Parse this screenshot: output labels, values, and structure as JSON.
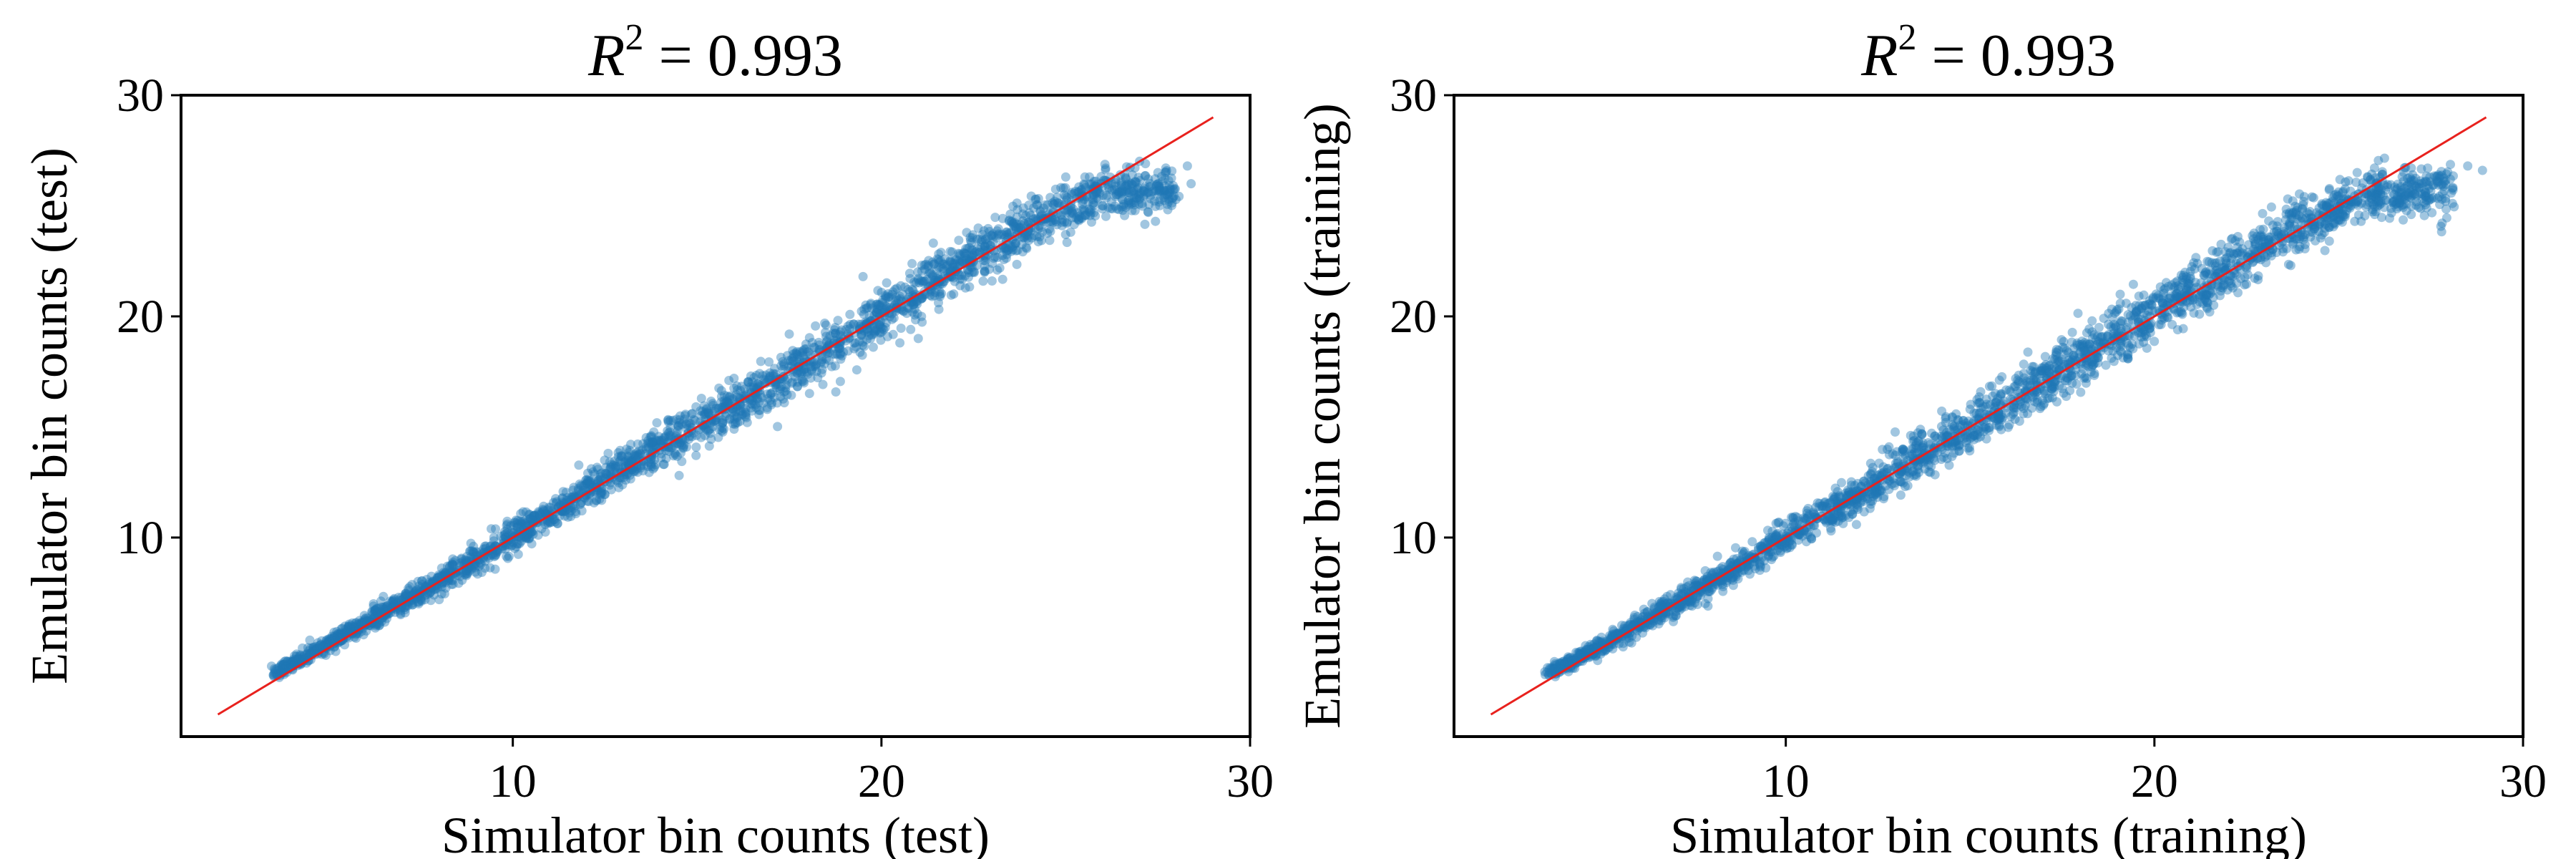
{
  "chart_data": [
    {
      "type": "scatter",
      "title_var": "R",
      "title_exp": "2",
      "title_eq": " = 0.993",
      "xlabel": "Simulator bin counts (test)",
      "ylabel": "Emulator bin counts (test)",
      "xlim": [
        1,
        30
      ],
      "ylim": [
        1,
        30
      ],
      "xticks": [
        10,
        20,
        30
      ],
      "yticks": [
        10,
        20,
        30
      ],
      "grid": false,
      "point_color": "#1f77b4",
      "line_color": "#e8211d",
      "reference_line": {
        "from": [
          2,
          2
        ],
        "to": [
          29,
          29
        ]
      },
      "series": [
        {
          "spine": [
            [
              3.6,
              3.9
            ],
            [
              5,
              5.2
            ],
            [
              8,
              8
            ],
            [
              10,
              10
            ],
            [
              12,
              12.1
            ],
            [
              14,
              14.2
            ],
            [
              16,
              15.9
            ],
            [
              18,
              17.9
            ],
            [
              20,
              20.1
            ],
            [
              22,
              22.2
            ],
            [
              24,
              24.1
            ],
            [
              26,
              25.6
            ],
            [
              28,
              25.7
            ]
          ],
          "spread": 0.55,
          "outliers": [
            [
              27.5,
              26.5
            ],
            [
              28.3,
              26.8
            ],
            [
              28.4,
              26
            ],
            [
              27.8,
              25.2
            ],
            [
              21,
              19
            ],
            [
              23,
              21.6
            ],
            [
              16,
              17.2
            ],
            [
              17.5,
              19.2
            ],
            [
              25,
              26.3
            ],
            [
              19.5,
              21.8
            ],
            [
              20.5,
              18.8
            ],
            [
              26.6,
              26.4
            ]
          ]
        }
      ]
    },
    {
      "type": "scatter",
      "title_var": "R",
      "title_exp": "2",
      "title_eq": " = 0.993",
      "xlabel": "Simulator bin counts (training)",
      "ylabel": "Emulator bin counts (training)",
      "xlim": [
        1,
        30
      ],
      "ylim": [
        1,
        30
      ],
      "xticks": [
        10,
        20,
        30
      ],
      "yticks": [
        10,
        20,
        30
      ],
      "grid": false,
      "point_color": "#1f77b4",
      "line_color": "#e8211d",
      "reference_line": {
        "from": [
          2,
          2
        ],
        "to": [
          29,
          29
        ]
      },
      "series": [
        {
          "spine": [
            [
              3.6,
              3.9
            ],
            [
              5,
              5.1
            ],
            [
              8,
              8
            ],
            [
              10,
              10
            ],
            [
              12,
              11.9
            ],
            [
              14,
              14.1
            ],
            [
              16,
              16
            ],
            [
              18,
              18.1
            ],
            [
              20,
              20.1
            ],
            [
              22,
              22.2
            ],
            [
              24,
              24.2
            ],
            [
              26,
              25.6
            ],
            [
              28,
              25.8
            ]
          ],
          "spread": 0.6,
          "outliers": [
            [
              28.5,
              26.8
            ],
            [
              28.9,
              26.6
            ],
            [
              27.8,
              25.3
            ],
            [
              15,
              15.8
            ],
            [
              12.8,
              14.1
            ],
            [
              16.7,
              17.5
            ],
            [
              23.7,
              22.3
            ],
            [
              21.5,
              20.2
            ],
            [
              25.5,
              26.5
            ]
          ]
        }
      ]
    }
  ]
}
